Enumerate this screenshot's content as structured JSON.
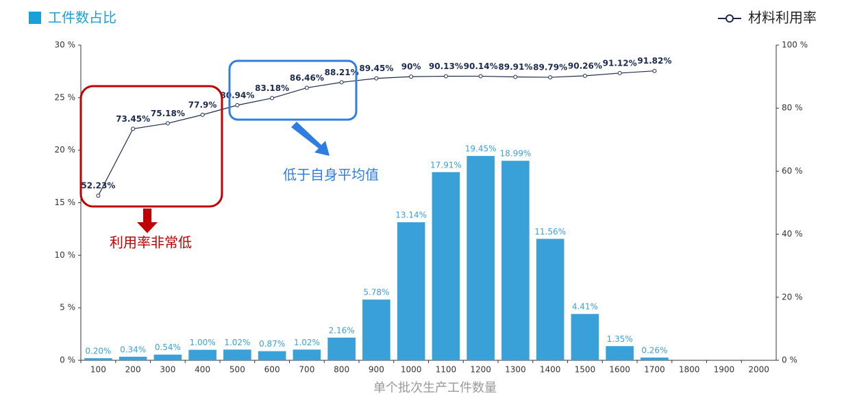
{
  "chart_data": {
    "type": "bar",
    "x_label": "单个批次生产工件数量",
    "categories": [
      "100",
      "200",
      "300",
      "400",
      "500",
      "600",
      "700",
      "800",
      "900",
      "1000",
      "1100",
      "1200",
      "1300",
      "1400",
      "1500",
      "1600",
      "1700",
      "1800",
      "1900",
      "2000"
    ],
    "series": [
      {
        "name": "工件数占比",
        "type": "bar",
        "color": "#3aa0d8",
        "values": [
          0.2,
          0.34,
          0.54,
          1.0,
          1.02,
          0.87,
          1.02,
          2.16,
          5.78,
          13.14,
          17.91,
          19.45,
          18.99,
          11.56,
          4.41,
          1.35,
          0.26,
          null,
          null,
          null
        ],
        "value_labels": [
          "0.20%",
          "0.34%",
          "0.54%",
          "1.00%",
          "1.02%",
          "0.87%",
          "1.02%",
          "2.16%",
          "5.78%",
          "13.14%",
          "17.91%",
          "19.45%",
          "18.99%",
          "11.56%",
          "4.41%",
          "1.35%",
          "0.26%",
          null,
          null,
          null
        ]
      },
      {
        "name": "材料利用率",
        "type": "line",
        "axis": "y2",
        "color": "#1b2a4e",
        "values": [
          52.23,
          73.45,
          75.18,
          77.9,
          80.94,
          83.18,
          86.46,
          88.21,
          89.45,
          90,
          90.13,
          90.14,
          89.91,
          89.79,
          90.26,
          91.12,
          91.82,
          null,
          null,
          null
        ],
        "value_labels": [
          "52.23%",
          "73.45%",
          "75.18%",
          "77.9%",
          "80.94%",
          "83.18%",
          "86.46%",
          "88.21%",
          "89.45%",
          "90%",
          "90.13%",
          "90.14%",
          "89.91%",
          "89.79%",
          "90.26%",
          "91.12%",
          "91.82%",
          null,
          null,
          null
        ]
      }
    ],
    "ylim": [
      0,
      30
    ],
    "yticks": [
      {
        "value": 0,
        "label": "0 %"
      },
      {
        "value": 5,
        "label": "5 %"
      },
      {
        "value": 10,
        "label": "10 %"
      },
      {
        "value": 15,
        "label": "15 %"
      },
      {
        "value": 20,
        "label": "20 %"
      },
      {
        "value": 25,
        "label": "25 %"
      },
      {
        "value": 30,
        "label": "30 %"
      }
    ],
    "y2lim": [
      0,
      100
    ],
    "y2ticks": [
      {
        "value": 0,
        "label": "0 %"
      },
      {
        "value": 20,
        "label": "20 %"
      },
      {
        "value": 40,
        "label": "40 %"
      },
      {
        "value": 60,
        "label": "60 %"
      },
      {
        "value": 80,
        "label": "80 %"
      },
      {
        "value": 100,
        "label": "100 %"
      }
    ],
    "annotations": [
      "利用率非常低",
      "低于自身平均值"
    ]
  }
}
